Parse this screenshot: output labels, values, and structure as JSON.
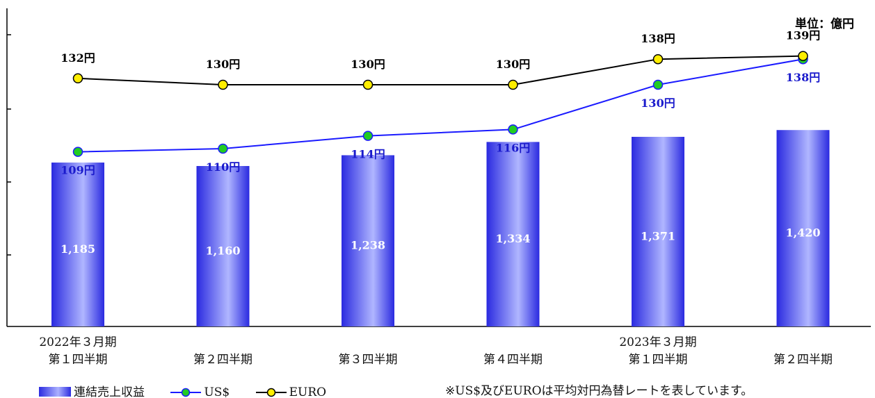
{
  "unit_label": "単位：億円",
  "note": "※US$及びEUROは平均対円為替レートを表しています。",
  "legend": {
    "revenue": "連結売上収益",
    "usd": "US$",
    "euro": "EURO"
  },
  "x_labels": [
    {
      "year": "2022年３月期",
      "quarter": "第１四半期"
    },
    {
      "year": "",
      "quarter": "第２四半期"
    },
    {
      "year": "",
      "quarter": "第３四半期"
    },
    {
      "year": "",
      "quarter": "第４四半期"
    },
    {
      "year": "2023年３月期",
      "quarter": "第１四半期"
    },
    {
      "year": "",
      "quarter": "第２四半期"
    }
  ],
  "colors": {
    "bar": "#3333ee",
    "usd_line": "#1a1aff",
    "usd_marker": "#22cc22",
    "euro_line": "#000000",
    "euro_marker": "#ffee00"
  },
  "chart_data": {
    "type": "bar",
    "categories": [
      "第１四半期",
      "第２四半期",
      "第３四半期",
      "第４四半期",
      "第１四半期",
      "第２四半期"
    ],
    "ylim": [
      0,
      2300
    ],
    "series": [
      {
        "name": "連結売上収益",
        "type": "bar",
        "values": [
          1185,
          1160,
          1238,
          1334,
          1371,
          1420
        ],
        "labels": [
          "1,185",
          "1,160",
          "1,238",
          "1,334",
          "1,371",
          "1,420"
        ]
      },
      {
        "name": "US$",
        "type": "line",
        "values": [
          109,
          110,
          114,
          116,
          130,
          138
        ],
        "labels": [
          "109円",
          "110円",
          "114円",
          "116円",
          "130円",
          "138円"
        ]
      },
      {
        "name": "EURO",
        "type": "line",
        "values": [
          132,
          130,
          130,
          130,
          138,
          139
        ],
        "labels": [
          "132円",
          "130円",
          "130円",
          "130円",
          "138円",
          "139円"
        ]
      }
    ]
  }
}
